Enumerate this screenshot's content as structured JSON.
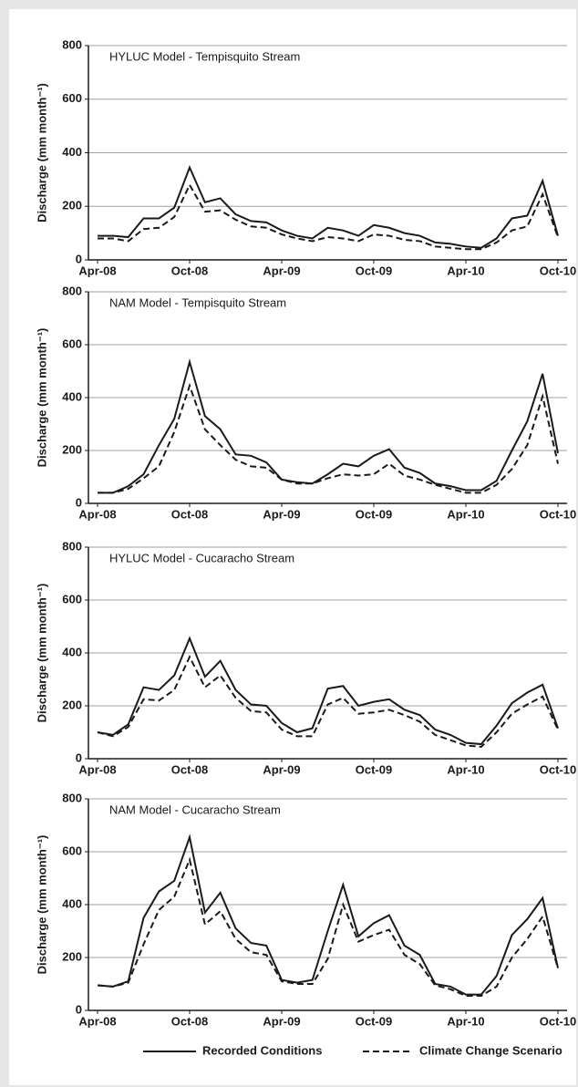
{
  "chart_data": [
    {
      "type": "line",
      "title": "HYLUC Model - Tempisquito Stream",
      "ylabel": "Discharge (mm month⁻¹)",
      "categories": [
        "Apr-08",
        null,
        null,
        null,
        null,
        null,
        "Oct-08",
        null,
        null,
        null,
        null,
        null,
        "Apr-09",
        null,
        null,
        null,
        null,
        null,
        "Oct-09",
        null,
        null,
        null,
        null,
        null,
        "Apr-10",
        null,
        null,
        null,
        null,
        null,
        "Oct-10"
      ],
      "ylim": [
        0,
        800
      ],
      "yticks": [
        0,
        200,
        400,
        600,
        800
      ],
      "grid": true,
      "series": [
        {
          "name": "Recorded Conditions",
          "color": "#1a1a1a",
          "dash": false,
          "values": [
            90,
            90,
            85,
            155,
            155,
            195,
            345,
            215,
            230,
            170,
            145,
            140,
            110,
            90,
            80,
            120,
            110,
            90,
            130,
            120,
            100,
            90,
            65,
            60,
            50,
            45,
            80,
            155,
            165,
            295,
            90
          ]
        },
        {
          "name": "Climate Change Scenario",
          "color": "#1a1a1a",
          "dash": true,
          "values": [
            80,
            80,
            70,
            115,
            120,
            160,
            280,
            180,
            185,
            150,
            125,
            120,
            95,
            80,
            70,
            85,
            80,
            70,
            95,
            90,
            75,
            70,
            50,
            45,
            40,
            40,
            65,
            110,
            125,
            245,
            85
          ]
        }
      ]
    },
    {
      "type": "line",
      "title": "NAM Model - Tempisquito Stream",
      "ylabel": "Discharge (mm month⁻¹)",
      "categories": [
        "Apr-08",
        null,
        null,
        null,
        null,
        null,
        "Oct-08",
        null,
        null,
        null,
        null,
        null,
        "Apr-09",
        null,
        null,
        null,
        null,
        null,
        "Oct-09",
        null,
        null,
        null,
        null,
        null,
        "Apr-10",
        null,
        null,
        null,
        null,
        null,
        "Oct-10"
      ],
      "ylim": [
        0,
        800
      ],
      "yticks": [
        0,
        200,
        400,
        600,
        800
      ],
      "grid": true,
      "series": [
        {
          "name": "Recorded Conditions",
          "color": "#1a1a1a",
          "dash": false,
          "values": [
            40,
            40,
            65,
            110,
            220,
            320,
            535,
            330,
            280,
            185,
            180,
            155,
            90,
            80,
            75,
            110,
            150,
            140,
            180,
            205,
            135,
            115,
            75,
            65,
            50,
            50,
            85,
            200,
            310,
            490,
            190
          ]
        },
        {
          "name": "Climate Change Scenario",
          "color": "#1a1a1a",
          "dash": true,
          "values": [
            40,
            40,
            55,
            95,
            140,
            270,
            445,
            280,
            220,
            165,
            140,
            135,
            90,
            75,
            75,
            95,
            110,
            105,
            110,
            150,
            105,
            90,
            70,
            55,
            40,
            40,
            70,
            130,
            220,
            405,
            150
          ]
        }
      ]
    },
    {
      "type": "line",
      "title": "HYLUC Model - Cucaracho Stream",
      "ylabel": "Discharge (mm month⁻¹)",
      "categories": [
        "Apr-08",
        null,
        null,
        null,
        null,
        null,
        "Oct-08",
        null,
        null,
        null,
        null,
        null,
        "Apr-09",
        null,
        null,
        null,
        null,
        null,
        "Oct-09",
        null,
        null,
        null,
        null,
        null,
        "Apr-10",
        null,
        null,
        null,
        null,
        null,
        "Oct-10"
      ],
      "ylim": [
        0,
        800
      ],
      "yticks": [
        0,
        200,
        400,
        600,
        800
      ],
      "grid": true,
      "series": [
        {
          "name": "Recorded Conditions",
          "color": "#1a1a1a",
          "dash": false,
          "values": [
            100,
            90,
            130,
            270,
            260,
            315,
            455,
            310,
            370,
            260,
            205,
            200,
            135,
            100,
            115,
            265,
            275,
            200,
            215,
            225,
            185,
            165,
            110,
            90,
            60,
            55,
            125,
            210,
            250,
            280,
            115
          ]
        },
        {
          "name": "Climate Change Scenario",
          "color": "#1a1a1a",
          "dash": true,
          "values": [
            100,
            85,
            120,
            225,
            220,
            260,
            385,
            270,
            315,
            230,
            180,
            175,
            110,
            85,
            85,
            205,
            230,
            170,
            175,
            185,
            165,
            140,
            90,
            70,
            50,
            45,
            100,
            170,
            205,
            235,
            110
          ]
        }
      ]
    },
    {
      "type": "line",
      "title": "NAM Model - Cucaracho Stream",
      "ylabel": "Discharge (mm month⁻¹)",
      "categories": [
        "Apr-08",
        null,
        null,
        null,
        null,
        null,
        "Oct-08",
        null,
        null,
        null,
        null,
        null,
        "Apr-09",
        null,
        null,
        null,
        null,
        null,
        "Oct-09",
        null,
        null,
        null,
        null,
        null,
        "Apr-10",
        null,
        null,
        null,
        null,
        null,
        "Oct-10"
      ],
      "ylim": [
        0,
        800
      ],
      "yticks": [
        0,
        200,
        400,
        600,
        800
      ],
      "grid": true,
      "series": [
        {
          "name": "Recorded Conditions",
          "color": "#1a1a1a",
          "dash": false,
          "values": [
            95,
            90,
            110,
            350,
            450,
            490,
            655,
            370,
            445,
            310,
            255,
            245,
            115,
            105,
            115,
            300,
            475,
            280,
            330,
            360,
            245,
            210,
            100,
            90,
            60,
            60,
            130,
            285,
            345,
            425,
            160
          ]
        },
        {
          "name": "Climate Change Scenario",
          "color": "#1a1a1a",
          "dash": true,
          "values": [
            95,
            90,
            105,
            250,
            380,
            430,
            570,
            325,
            375,
            270,
            220,
            210,
            110,
            100,
            100,
            195,
            400,
            260,
            285,
            305,
            210,
            175,
            95,
            80,
            55,
            55,
            90,
            200,
            270,
            355,
            160
          ]
        }
      ]
    }
  ]
}
